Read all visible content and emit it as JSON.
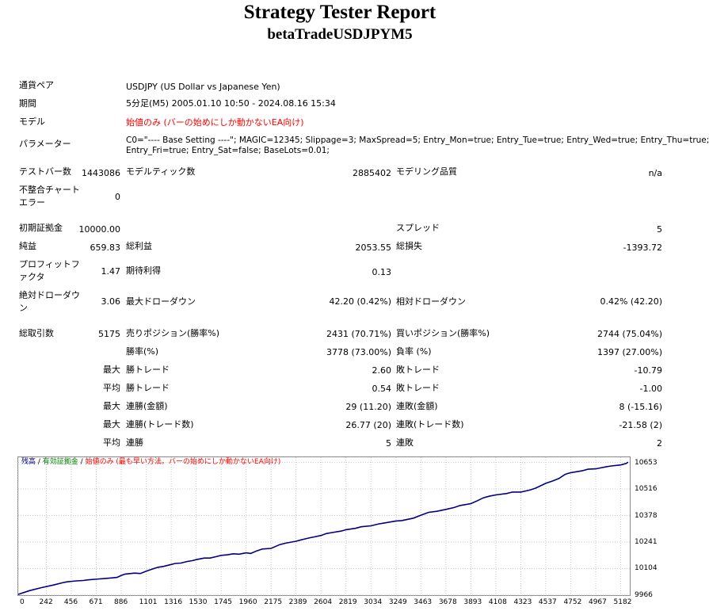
{
  "report": {
    "title": "Strategy Tester Report",
    "subtitle": "betaTradeUSDJPYM5"
  },
  "info": {
    "pair_label": "通貨ペア",
    "pair_value": "USDJPY (US Dollar vs Japanese Yen)",
    "period_label": "期間",
    "period_value": "5分足(M5) 2005.01.10 10:50 - 2024.08.16 15:34",
    "model_label": "モデル",
    "model_value": "始値のみ (バーの始めにしか動かないEA向け)",
    "params_label": "パラメーター",
    "params_line1": "C0=\"---- Base Setting ----\"; MAGIC=12345; Slippage=3; MaxSpread=5; Entry_Mon=true; Entry_Tue=true; Entry_Wed=true; Entry_Thu=true;",
    "params_line2": "Entry_Fri=true; Entry_Sat=false; BaseLots=0.01;"
  },
  "stats": {
    "test_bars_label": "テストバー数",
    "test_bars_value": "1443086",
    "model_ticks_label": "モデルティック数",
    "model_ticks_value": "2885402",
    "model_quality_label": "モデリング品質",
    "model_quality_value": "n/a",
    "mismatch_label1": "不整合チャート",
    "mismatch_label2": "エラー",
    "mismatch_value": "0",
    "initial_deposit_label": "初期証拠金",
    "initial_deposit_value": "10000.00",
    "spread_label": "スプレッド",
    "spread_value": "5",
    "net_profit_label": "純益",
    "net_profit_value": "659.83",
    "gross_profit_label": "総利益",
    "gross_profit_value": "2053.55",
    "gross_loss_label": "総損失",
    "gross_loss_value": "-1393.72",
    "profit_factor_label1": "プロフィットフ",
    "profit_factor_label2": "ァクタ",
    "profit_factor_value": "1.47",
    "expected_payoff_label": "期待利得",
    "expected_payoff_value": "0.13",
    "abs_dd_label1": "絶対ドローダウ",
    "abs_dd_label2": "ン",
    "abs_dd_value": "3.06",
    "max_dd_label": "最大ドローダウン",
    "max_dd_value": "42.20 (0.42%)",
    "rel_dd_label": "相対ドローダウン",
    "rel_dd_value": "0.42% (42.20)",
    "total_trades_label": "総取引数",
    "total_trades_value": "5175",
    "short_label": "売りポジション(勝率%)",
    "short_value": "2431 (70.71%)",
    "long_label": "買いポジション(勝率%)",
    "long_value": "2744 (75.04%)",
    "win_rate_label": "勝率(%)",
    "win_rate_value": "3778 (73.00%)",
    "loss_rate_label": "負率 (%)",
    "loss_rate_value": "1397 (27.00%)",
    "max_label": "最大",
    "avg_label": "平均",
    "largest_win_label": "勝トレード",
    "largest_win_value": "2.60",
    "largest_loss_label": "敗トレード",
    "largest_loss_value": "-10.79",
    "avg_win_label": "勝トレード",
    "avg_win_value": "0.54",
    "avg_loss_label": "敗トレード",
    "avg_loss_value": "-1.00",
    "max_consec_wins_amt_label": "連勝(金額)",
    "max_consec_wins_amt_value": "29 (11.20)",
    "max_consec_losses_amt_label": "連敗(金額)",
    "max_consec_losses_amt_value": "8 (-15.16)",
    "max_consec_wins_cnt_label": "連勝(トレード数)",
    "max_consec_wins_cnt_value": "26.77 (20)",
    "max_consec_losses_cnt_label": "連敗(トレード数)",
    "max_consec_losses_cnt_value": "-21.58 (2)",
    "avg_consec_wins_label": "連勝",
    "avg_consec_wins_value": "5",
    "avg_consec_losses_label": "連敗",
    "avg_consec_losses_value": "2"
  },
  "chart_data": {
    "type": "line",
    "legend": {
      "balance": "残高",
      "sep1": " / ",
      "equity": "有効証拠金",
      "sep2": " / ",
      "model": "始値のみ (最も早い方法。バーの始めにしか動かないEA向け)"
    },
    "x_ticks": [
      "0",
      "242",
      "456",
      "671",
      "886",
      "1101",
      "1316",
      "1530",
      "1745",
      "1960",
      "2175",
      "2389",
      "2604",
      "2819",
      "3034",
      "3249",
      "3463",
      "3678",
      "3893",
      "4108",
      "4323",
      "4537",
      "4752",
      "4967",
      "5182"
    ],
    "y_ticks": [
      "10653",
      "10516",
      "10378",
      "10241",
      "10104",
      "9966"
    ],
    "ylim": [
      9966,
      10680
    ],
    "xlim": [
      0,
      5260
    ],
    "balance_color": "#000080",
    "equity_color": "#008000",
    "series": [
      {
        "name": "残高",
        "x": [
          0,
          100,
          200,
          300,
          380,
          420,
          500,
          560,
          600,
          700,
          800,
          850,
          886,
          920,
          1000,
          1050,
          1101,
          1150,
          1200,
          1250,
          1316,
          1350,
          1400,
          1450,
          1500,
          1530,
          1600,
          1650,
          1700,
          1745,
          1800,
          1850,
          1900,
          1960,
          2000,
          2050,
          2100,
          2175,
          2250,
          2300,
          2389,
          2450,
          2500,
          2550,
          2604,
          2650,
          2700,
          2780,
          2819,
          2900,
          2950,
          3034,
          3100,
          3150,
          3249,
          3300,
          3400,
          3463,
          3530,
          3600,
          3678,
          3750,
          3800,
          3893,
          3950,
          4000,
          4050,
          4108,
          4200,
          4250,
          4323,
          4400,
          4450,
          4537,
          4600,
          4650,
          4700,
          4720,
          4752,
          4800,
          4850,
          4900,
          4967,
          5050,
          5100,
          5182,
          5230,
          5245
        ],
        "y": [
          9970,
          9990,
          10005,
          10018,
          10030,
          10035,
          10040,
          10042,
          10045,
          10050,
          10055,
          10058,
          10068,
          10075,
          10080,
          10078,
          10090,
          10100,
          10110,
          10115,
          10125,
          10130,
          10132,
          10140,
          10145,
          10150,
          10158,
          10158,
          10165,
          10172,
          10175,
          10180,
          10178,
          10185,
          10182,
          10195,
          10205,
          10208,
          10228,
          10235,
          10245,
          10255,
          10262,
          10268,
          10275,
          10285,
          10290,
          10298,
          10305,
          10312,
          10320,
          10325,
          10335,
          10340,
          10350,
          10352,
          10365,
          10380,
          10395,
          10400,
          10410,
          10420,
          10430,
          10440,
          10455,
          10470,
          10478,
          10485,
          10492,
          10500,
          10500,
          10510,
          10520,
          10545,
          10558,
          10570,
          10590,
          10595,
          10600,
          10605,
          10610,
          10618,
          10620,
          10630,
          10635,
          10640,
          10648,
          10655
        ]
      }
    ]
  }
}
